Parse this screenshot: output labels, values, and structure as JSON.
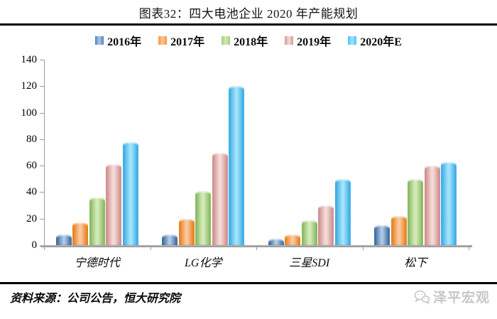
{
  "title": "图表32：四大电池企业 2020 年产能规划",
  "chart_data": {
    "type": "bar",
    "title": "图表32：四大电池企业 2020 年产能规划",
    "categories": [
      "宁德时代",
      "LG化学",
      "三星SDI",
      "松下"
    ],
    "series": [
      {
        "name": "2016年",
        "values": [
          8,
          8,
          5,
          15
        ],
        "color": "#4F81BD",
        "edge": "#2F5E97",
        "light": "#ACC7E3"
      },
      {
        "name": "2017年",
        "values": [
          17,
          20,
          8,
          22
        ],
        "color": "#F79646",
        "edge": "#E4760F",
        "light": "#FBC79B"
      },
      {
        "name": "2018年",
        "values": [
          36,
          41,
          19,
          50
        ],
        "color": "#A2CE77",
        "edge": "#7FB254",
        "light": "#D3EAB8"
      },
      {
        "name": "2019年",
        "values": [
          61,
          70,
          30,
          60
        ],
        "color": "#D99694",
        "edge": "#CB8583",
        "light": "#F3DAD7"
      },
      {
        "name": "2020年E",
        "values": [
          78,
          120,
          50,
          63
        ],
        "color": "#4FC3F7",
        "edge": "#2BA6E4",
        "light": "#A3E2FA"
      }
    ],
    "xlabel": "",
    "ylabel": "",
    "ylim": [
      0,
      140
    ],
    "ytick_step": 20,
    "grid": false,
    "legend_position": "top"
  },
  "footer": {
    "source": "资料来源：公司公告，恒大研究院",
    "logo_text": "泽平宏观"
  },
  "colors": {
    "axis": "#9C9C9C",
    "baseline": "#ADADAD",
    "rule": "#000000",
    "brand_gray": "#C7C7C7"
  }
}
